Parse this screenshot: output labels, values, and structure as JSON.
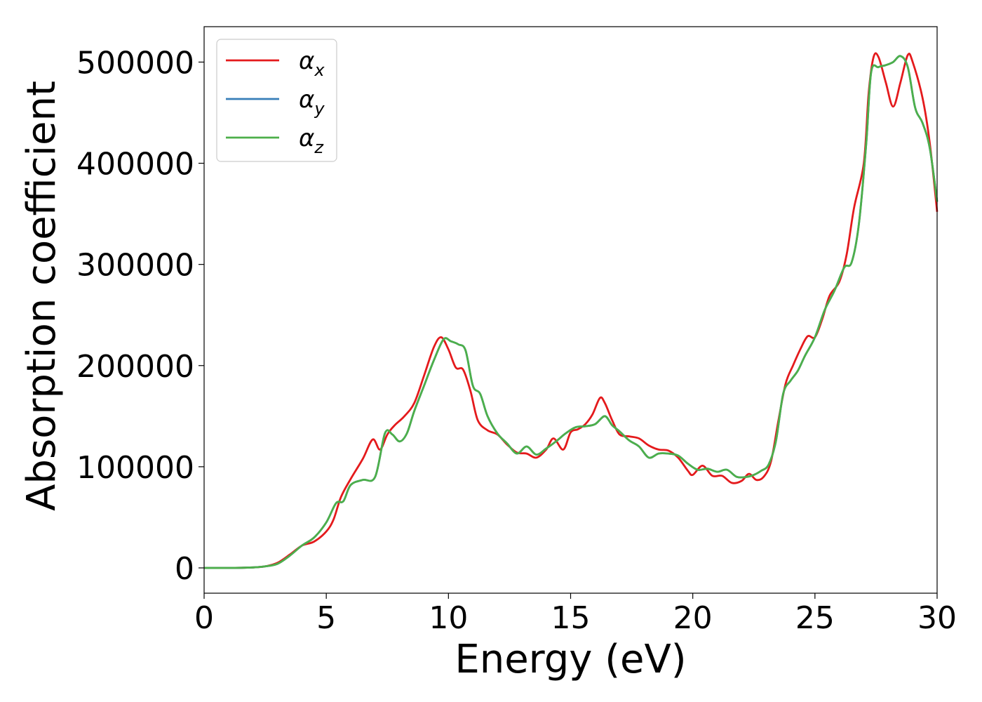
{
  "chart_data": {
    "type": "line",
    "xlabel": "Energy (eV)",
    "ylabel": "Absorption coefficient",
    "xlim": [
      0,
      30
    ],
    "ylim": [
      -25000,
      535000
    ],
    "xticks": [
      0,
      5,
      10,
      15,
      20,
      25,
      30
    ],
    "yticks": [
      0,
      100000,
      200000,
      300000,
      400000,
      500000
    ],
    "grid": false,
    "legend_position": "top-left",
    "series": [
      {
        "name": "α",
        "subscript": "x",
        "color": "#e41a1c",
        "x": [
          0,
          1,
          2,
          2.5,
          3,
          3.5,
          4,
          4.5,
          5,
          5.3,
          5.6,
          6,
          6.5,
          6.9,
          7.2,
          7.5,
          7.8,
          8.2,
          8.6,
          9,
          9.4,
          9.7,
          10,
          10.3,
          10.6,
          10.9,
          11.2,
          11.6,
          12,
          12.4,
          12.8,
          13.2,
          13.6,
          14,
          14.3,
          14.7,
          15,
          15.3,
          15.6,
          15.9,
          16.2,
          16.4,
          16.7,
          17,
          17.4,
          17.8,
          18.2,
          18.6,
          19,
          19.4,
          19.8,
          20,
          20.4,
          20.8,
          21.2,
          21.6,
          22,
          22.3,
          22.6,
          22.9,
          23.2,
          23.5,
          23.8,
          24.1,
          24.4,
          24.7,
          25,
          25.3,
          25.6,
          26,
          26.3,
          26.6,
          27,
          27.2,
          27.4,
          27.6,
          27.9,
          28.2,
          28.5,
          28.8,
          29,
          29.4,
          29.7,
          30
        ],
        "y": [
          0,
          0,
          500,
          1500,
          5000,
          13000,
          22000,
          26000,
          36000,
          48000,
          70000,
          88000,
          108000,
          127000,
          117000,
          132000,
          141000,
          150000,
          163000,
          190000,
          218000,
          228000,
          216000,
          198000,
          196000,
          175000,
          146000,
          136000,
          132000,
          122000,
          114000,
          113000,
          109000,
          117000,
          128000,
          117000,
          134000,
          137000,
          142000,
          152000,
          168000,
          163000,
          146000,
          132000,
          130000,
          128000,
          121000,
          117000,
          116000,
          109000,
          96000,
          92000,
          101000,
          91000,
          91000,
          84000,
          86000,
          93000,
          87000,
          90000,
          105000,
          145000,
          182000,
          200000,
          216000,
          229000,
          228000,
          246000,
          269000,
          283000,
          310000,
          356000,
          400000,
          470000,
          505000,
          505000,
          480000,
          456000,
          480000,
          507000,
          500000,
          465000,
          420000,
          352000
        ]
      },
      {
        "name": "α",
        "subscript": "y",
        "color": "#377eb8",
        "x": [
          0,
          1,
          2,
          2.5,
          3,
          3.5,
          4,
          4.5,
          5,
          5.4,
          5.7,
          6,
          6.5,
          7,
          7.4,
          7.7,
          8,
          8.3,
          8.6,
          9,
          9.4,
          9.8,
          10.1,
          10.4,
          10.7,
          11,
          11.3,
          11.6,
          12,
          12.4,
          12.8,
          13.2,
          13.6,
          14,
          14.4,
          14.8,
          15.2,
          15.6,
          16,
          16.4,
          16.7,
          17,
          17.4,
          17.8,
          18.2,
          18.6,
          19,
          19.4,
          19.8,
          20.2,
          20.6,
          21,
          21.4,
          21.8,
          22.2,
          22.5,
          22.8,
          23.1,
          23.4,
          23.7,
          24,
          24.3,
          24.6,
          25,
          25.4,
          25.8,
          26.2,
          26.5,
          26.8,
          27.1,
          27.3,
          27.6,
          27.9,
          28.2,
          28.5,
          28.8,
          29.1,
          29.4,
          29.7,
          30
        ],
        "y": [
          0,
          0,
          500,
          1500,
          4000,
          12000,
          22000,
          30000,
          45000,
          64000,
          66000,
          82000,
          87000,
          90000,
          133000,
          132000,
          125000,
          133000,
          155000,
          180000,
          205000,
          226000,
          224000,
          221000,
          215000,
          180000,
          172000,
          150000,
          133000,
          123000,
          113000,
          120000,
          112000,
          118000,
          125000,
          133000,
          139000,
          140000,
          142000,
          150000,
          141000,
          135000,
          126000,
          120000,
          109000,
          113000,
          113000,
          111000,
          103000,
          97000,
          98000,
          95000,
          97000,
          90000,
          90000,
          92000,
          96000,
          102000,
          125000,
          172000,
          185000,
          195000,
          210000,
          228000,
          255000,
          274000,
          297000,
          302000,
          340000,
          420000,
          490000,
          495000,
          497000,
          500000,
          506000,
          495000,
          455000,
          440000,
          415000,
          362000
        ]
      },
      {
        "name": "α",
        "subscript": "z",
        "color": "#4daf4a",
        "x": [
          0,
          1,
          2,
          2.5,
          3,
          3.5,
          4,
          4.5,
          5,
          5.4,
          5.7,
          6,
          6.5,
          7,
          7.4,
          7.7,
          8,
          8.3,
          8.6,
          9,
          9.4,
          9.8,
          10.1,
          10.4,
          10.7,
          11,
          11.3,
          11.6,
          12,
          12.4,
          12.8,
          13.2,
          13.6,
          14,
          14.4,
          14.8,
          15.2,
          15.6,
          16,
          16.4,
          16.7,
          17,
          17.4,
          17.8,
          18.2,
          18.6,
          19,
          19.4,
          19.8,
          20.2,
          20.6,
          21,
          21.4,
          21.8,
          22.2,
          22.5,
          22.8,
          23.1,
          23.4,
          23.7,
          24,
          24.3,
          24.6,
          25,
          25.4,
          25.8,
          26.2,
          26.5,
          26.8,
          27.1,
          27.3,
          27.6,
          27.9,
          28.2,
          28.5,
          28.8,
          29.1,
          29.4,
          29.7,
          30
        ],
        "y": [
          0,
          0,
          500,
          1500,
          4000,
          12000,
          22000,
          30000,
          45000,
          64000,
          66000,
          82000,
          87000,
          90000,
          133000,
          132000,
          125000,
          133000,
          155000,
          180000,
          205000,
          226000,
          224000,
          221000,
          215000,
          180000,
          172000,
          150000,
          133000,
          123000,
          113000,
          120000,
          112000,
          118000,
          125000,
          133000,
          139000,
          140000,
          142000,
          150000,
          141000,
          135000,
          126000,
          120000,
          109000,
          113000,
          113000,
          111000,
          103000,
          97000,
          98000,
          95000,
          97000,
          90000,
          90000,
          92000,
          96000,
          102000,
          125000,
          172000,
          185000,
          195000,
          210000,
          228000,
          255000,
          274000,
          297000,
          302000,
          340000,
          420000,
          490000,
          495000,
          497000,
          500000,
          506000,
          495000,
          455000,
          440000,
          415000,
          362000
        ]
      }
    ]
  }
}
